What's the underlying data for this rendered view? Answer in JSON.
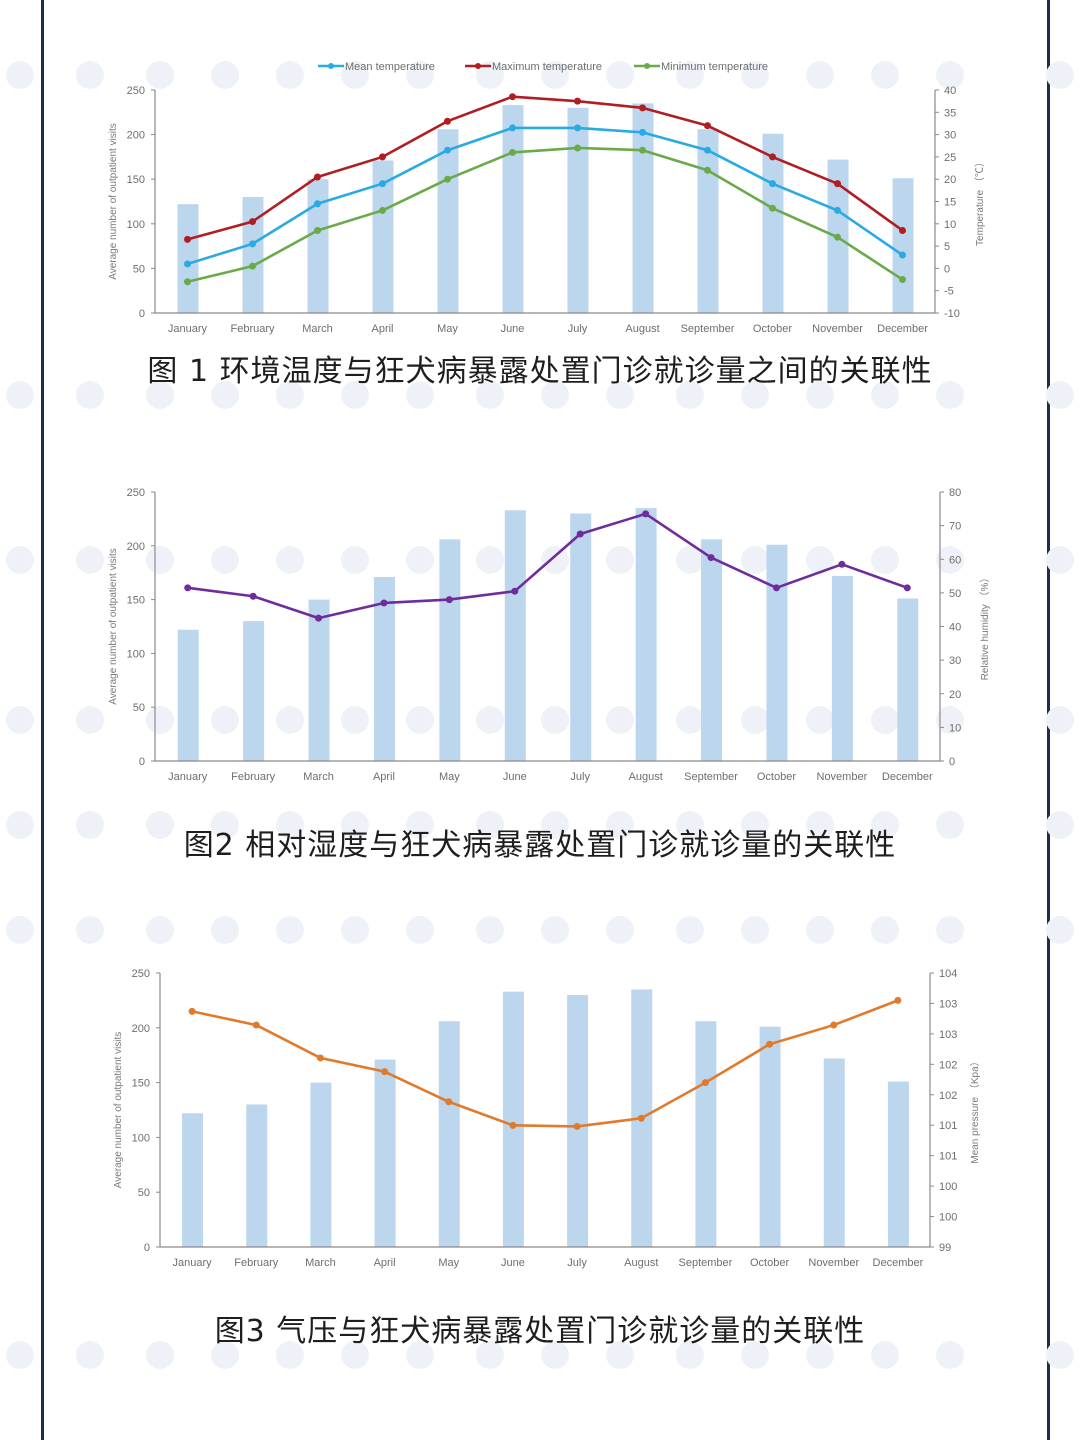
{
  "page": {
    "background": "#ffffff",
    "frame_color": "#1c2e4f",
    "bar_color": "#bcd6ee"
  },
  "captions": {
    "fig1": "图 1 环境温度与狂犬病暴露处置门诊就诊量之间的关联性",
    "fig2": "图2 相对湿度与狂犬病暴露处置门诊就诊量的关联性",
    "fig3": "图3 气压与狂犬病暴露处置门诊就诊量的关联性"
  },
  "chart_data": [
    {
      "type": "bar+line",
      "title": "图 1 环境温度与狂犬病暴露处置门诊就诊量之间的关联性",
      "categories": [
        "January",
        "February",
        "March",
        "April",
        "May",
        "June",
        "July",
        "August",
        "September",
        "October",
        "November",
        "December"
      ],
      "ylabel": "Average number of outpatient visits",
      "ylim": [
        0,
        250
      ],
      "yticks": [
        0,
        50,
        100,
        150,
        200,
        250
      ],
      "y2label": "Temperature （℃）",
      "y2lim": [
        -10,
        40
      ],
      "y2ticks": [
        -10,
        -5,
        0,
        5,
        10,
        15,
        20,
        25,
        30,
        35,
        40
      ],
      "legend_position": "top",
      "bars": {
        "name": "Average number of outpatient visits",
        "color": "#bcd6ee",
        "values": [
          122,
          130,
          150,
          171,
          206,
          233,
          230,
          235,
          206,
          201,
          172,
          151
        ]
      },
      "series": [
        {
          "name": "Mean temperature",
          "color": "#29abe2",
          "axis": "right",
          "values": [
            1,
            5.5,
            14.5,
            19,
            26.5,
            31.5,
            31.5,
            30.5,
            26.5,
            19,
            13,
            3
          ]
        },
        {
          "name": "Maximum temperature",
          "color": "#b01e23",
          "axis": "right",
          "values": [
            6.5,
            10.5,
            20.5,
            25,
            33,
            38.5,
            37.5,
            36,
            32,
            25,
            19,
            8.5
          ]
        },
        {
          "name": "Minimum temperature",
          "color": "#6aaa4a",
          "axis": "right",
          "values": [
            -3,
            0.5,
            8.5,
            13,
            20,
            26,
            27,
            26.5,
            22,
            13.5,
            7,
            -2.5
          ]
        }
      ],
      "grid": false
    },
    {
      "type": "bar+line",
      "title": "图2 相对湿度与狂犬病暴露处置门诊就诊量的关联性",
      "categories": [
        "January",
        "February",
        "March",
        "April",
        "May",
        "June",
        "July",
        "August",
        "September",
        "October",
        "November",
        "December"
      ],
      "ylabel": "Average number of outpatient visits",
      "ylim": [
        0,
        250
      ],
      "yticks": [
        0,
        50,
        100,
        150,
        200,
        250
      ],
      "y2label": "Relative humidity （%）",
      "y2lim": [
        0,
        80
      ],
      "y2ticks": [
        0,
        10,
        20,
        30,
        40,
        50,
        60,
        70,
        80
      ],
      "bars": {
        "name": "Average number of outpatient visits",
        "color": "#bcd6ee",
        "values": [
          122,
          130,
          150,
          171,
          206,
          233,
          230,
          235,
          206,
          201,
          172,
          151
        ]
      },
      "series": [
        {
          "name": "Relative humidity",
          "color": "#6f2c9a",
          "axis": "right",
          "values": [
            51.5,
            49,
            42.5,
            47,
            48,
            50.5,
            67.5,
            73.5,
            60.5,
            51.5,
            58.5,
            51.5
          ]
        }
      ],
      "grid": false
    },
    {
      "type": "bar+line",
      "title": "图3 气压与狂犬病暴露处置门诊就诊量的关联性",
      "categories": [
        "January",
        "February",
        "March",
        "April",
        "May",
        "June",
        "July",
        "August",
        "September",
        "October",
        "November",
        "December"
      ],
      "ylabel": "Average number of outpatient visits",
      "ylim": [
        0,
        250
      ],
      "yticks": [
        0,
        50,
        100,
        150,
        200,
        250
      ],
      "y2label": "Mean pressure （Kpa）",
      "y2lim": [
        99,
        104
      ],
      "y2ticks": [
        "99",
        "100",
        "100",
        "101",
        "101",
        "102",
        "102",
        "103",
        "103",
        "104"
      ],
      "bars": {
        "name": "Average number of outpatient visits",
        "color": "#bcd6ee",
        "values": [
          122,
          130,
          150,
          171,
          206,
          233,
          230,
          235,
          206,
          201,
          172,
          151
        ]
      },
      "series": [
        {
          "name": "Mean pressure",
          "color": "#e07b2e",
          "axis": "right",
          "values": [
            103.3,
            103.05,
            102.45,
            102.2,
            101.65,
            101.22,
            101.2,
            101.35,
            102.0,
            102.7,
            103.05,
            103.5
          ]
        }
      ],
      "grid": false
    }
  ]
}
